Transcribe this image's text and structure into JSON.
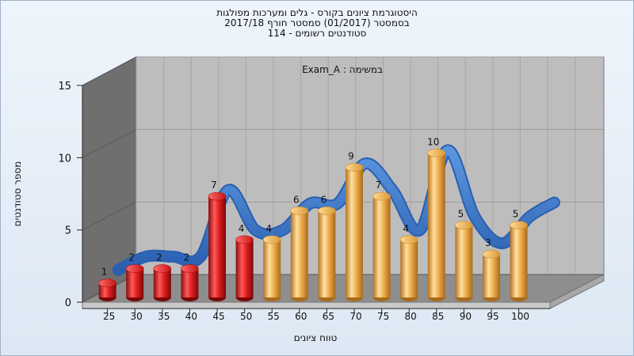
{
  "title_lines": [
    "היסטוגרמת ציונים בקורס - גלים ומערכות מפולגות",
    "בסמסטר  (01/2017)  סמסטר חורף 2017/18",
    "סטודנטים רשומים - 114"
  ],
  "chart_data": {
    "type": "bar",
    "subtitle": "Exam_A : במשימה",
    "xlabel": "טווח ציונים",
    "ylabel": "מספר סטודנטים",
    "categories": [
      "25",
      "30",
      "35",
      "40",
      "45",
      "50",
      "55",
      "60",
      "65",
      "70",
      "75",
      "80",
      "85",
      "90",
      "95",
      "100"
    ],
    "values": [
      1,
      2,
      2,
      2,
      7,
      4,
      4,
      6,
      6,
      9,
      7,
      4,
      10,
      5,
      3,
      5
    ],
    "bar_colors": [
      "red",
      "red",
      "red",
      "red",
      "red",
      "red",
      "orange",
      "orange",
      "orange",
      "orange",
      "orange",
      "orange",
      "orange",
      "orange",
      "orange",
      "orange"
    ],
    "colors": {
      "red": "#e02020",
      "orange": "#f0b050",
      "curve": "#3a78c8"
    },
    "ylim": [
      0,
      15
    ],
    "yticks": [
      0,
      5,
      10,
      15
    ],
    "grid": true,
    "curve": {
      "type": "smooth",
      "values": [
        1,
        2,
        2,
        2,
        7,
        4,
        4,
        6,
        6,
        9,
        7,
        4,
        10,
        5,
        3,
        5
      ]
    }
  }
}
